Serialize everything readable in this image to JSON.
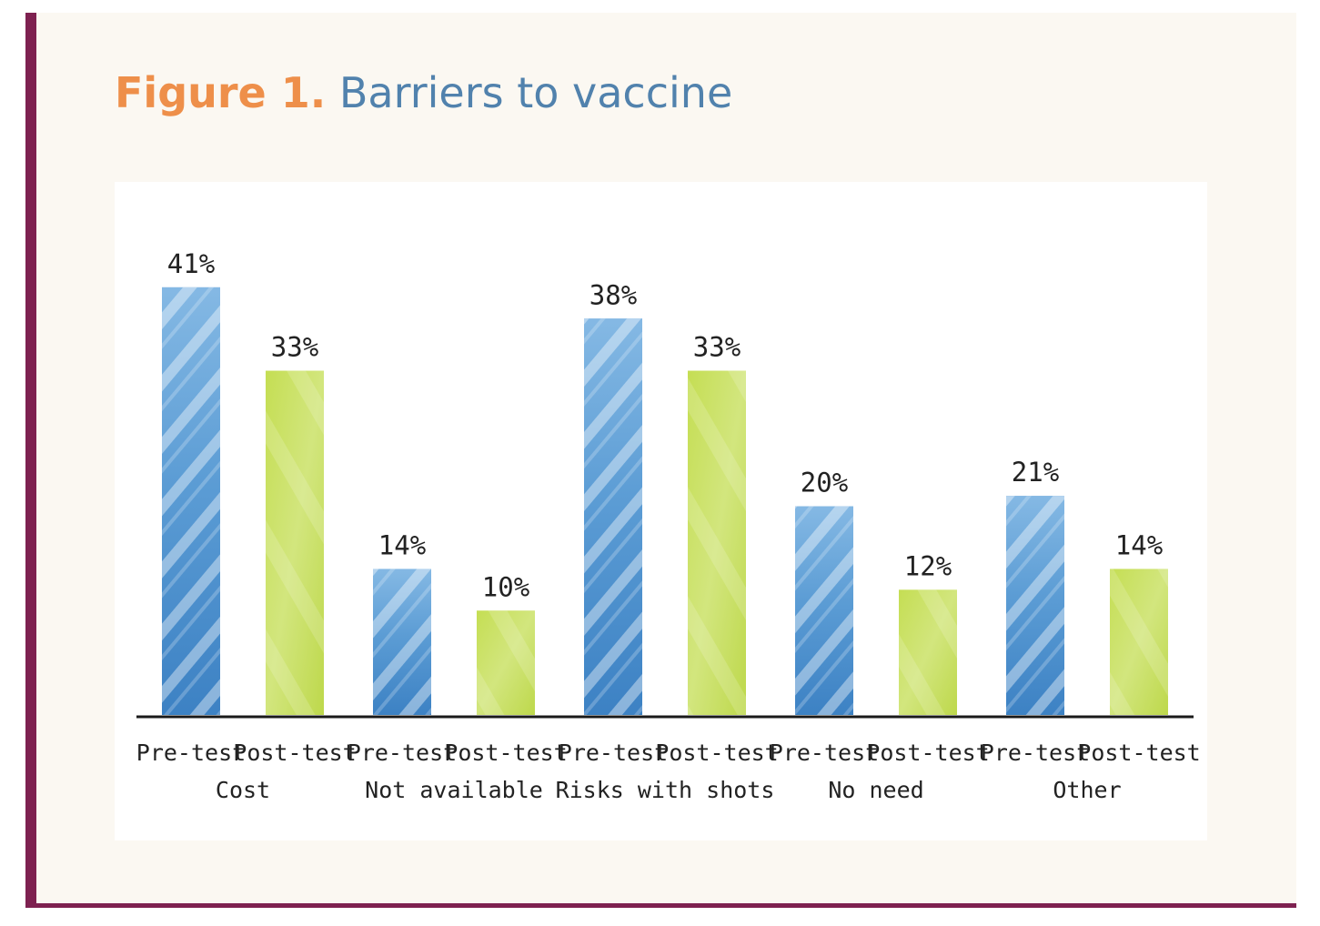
{
  "title": {
    "label": "Figure 1.",
    "caption": "Barriers to vaccine"
  },
  "colors": {
    "frame_border": "#7e2150",
    "background": "#fbf8f2",
    "title_label": "#ee8f4a",
    "title_caption": "#5182ad",
    "pre_test_bar": "#4a8fcd",
    "post_test_bar": "#bfd94c"
  },
  "chart_data": {
    "type": "bar",
    "title": "Figure 1. Barriers to vaccine",
    "xlabel": "",
    "ylabel": "",
    "ylim": [
      0,
      45
    ],
    "grid": false,
    "legend": "none",
    "categories": [
      "Cost",
      "Not available",
      "Risks with shots",
      "No need",
      "Other"
    ],
    "bar_labels": [
      "Pre-test",
      "Post-test"
    ],
    "series": [
      {
        "values": [
          41,
          14,
          38,
          20,
          21
        ],
        "labels": [
          "41%",
          "14%",
          "38%",
          "20%",
          "21%"
        ]
      },
      {
        "values": [
          33,
          10,
          33,
          12,
          14
        ],
        "labels": [
          "33%",
          "10%",
          "33%",
          "12%",
          "14%"
        ]
      }
    ]
  }
}
